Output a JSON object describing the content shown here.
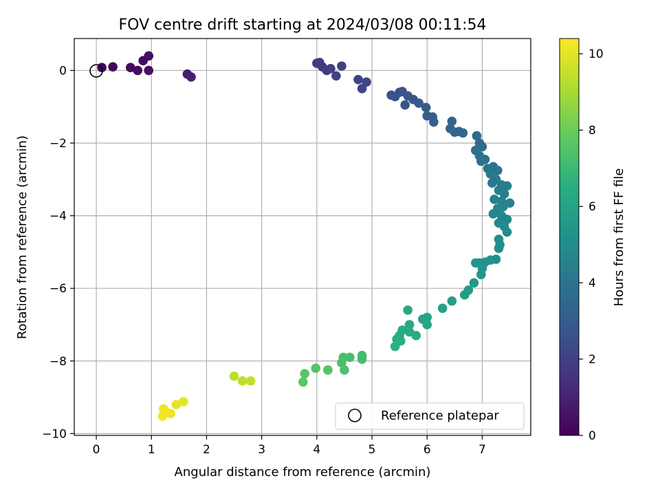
{
  "chart_data": {
    "type": "scatter",
    "title": "FOV centre drift starting at 2024/03/08 00:11:54",
    "xlabel": "Angular distance from reference (arcmin)",
    "ylabel": "Rotation from reference (arcmin)",
    "xlim": [
      -0.4,
      7.88
    ],
    "ylim": [
      -10.05,
      0.88
    ],
    "x_ticks": [
      0,
      1,
      2,
      3,
      4,
      5,
      6,
      7
    ],
    "y_ticks": [
      0,
      -2,
      -4,
      -6,
      -8,
      -10
    ],
    "x_tick_labels": [
      "0",
      "1",
      "2",
      "3",
      "4",
      "5",
      "6",
      "7"
    ],
    "y_tick_labels": [
      "0",
      "−2",
      "−4",
      "−6",
      "−8",
      "−10"
    ],
    "grid": true,
    "colormap": "viridis",
    "colorbar": {
      "label": "Hours from first FF file",
      "range": [
        0,
        10.4
      ],
      "ticks": [
        0,
        2,
        4,
        6,
        8,
        10
      ],
      "tick_labels": [
        "0",
        "2",
        "4",
        "6",
        "8",
        "10"
      ]
    },
    "legend": {
      "placement": "lower-right",
      "entries": [
        "Reference platepar"
      ]
    },
    "reference_point": {
      "x": 0,
      "y": 0
    },
    "points": [
      {
        "x": 0.1,
        "y": 0.08,
        "h": 0.1
      },
      {
        "x": 0.3,
        "y": 0.1,
        "h": 0.2
      },
      {
        "x": 0.62,
        "y": 0.08,
        "h": 0.3
      },
      {
        "x": 0.75,
        "y": 0.0,
        "h": 0.35
      },
      {
        "x": 0.85,
        "y": 0.27,
        "h": 0.4
      },
      {
        "x": 0.95,
        "y": 0.4,
        "h": 0.45
      },
      {
        "x": 0.95,
        "y": 0.0,
        "h": 0.5
      },
      {
        "x": 1.65,
        "y": -0.1,
        "h": 0.9
      },
      {
        "x": 1.72,
        "y": -0.18,
        "h": 0.95
      },
      {
        "x": 4.0,
        "y": 0.2,
        "h": 1.7
      },
      {
        "x": 4.05,
        "y": 0.22,
        "h": 1.75
      },
      {
        "x": 4.1,
        "y": 0.1,
        "h": 1.8
      },
      {
        "x": 4.18,
        "y": 0.0,
        "h": 1.85
      },
      {
        "x": 4.25,
        "y": 0.05,
        "h": 1.9
      },
      {
        "x": 4.35,
        "y": -0.15,
        "h": 1.95
      },
      {
        "x": 4.45,
        "y": 0.12,
        "h": 2.0
      },
      {
        "x": 4.75,
        "y": -0.25,
        "h": 2.1
      },
      {
        "x": 4.82,
        "y": -0.5,
        "h": 2.15
      },
      {
        "x": 4.9,
        "y": -0.32,
        "h": 2.2
      },
      {
        "x": 5.35,
        "y": -0.68,
        "h": 2.5
      },
      {
        "x": 5.42,
        "y": -0.72,
        "h": 2.55
      },
      {
        "x": 5.5,
        "y": -0.6,
        "h": 2.6
      },
      {
        "x": 5.55,
        "y": -0.58,
        "h": 2.65
      },
      {
        "x": 5.6,
        "y": -0.95,
        "h": 2.7
      },
      {
        "x": 5.65,
        "y": -0.7,
        "h": 2.75
      },
      {
        "x": 5.75,
        "y": -0.8,
        "h": 2.8
      },
      {
        "x": 5.85,
        "y": -0.9,
        "h": 2.9
      },
      {
        "x": 5.98,
        "y": -1.02,
        "h": 3.0
      },
      {
        "x": 6.0,
        "y": -1.25,
        "h": 3.05
      },
      {
        "x": 6.1,
        "y": -1.28,
        "h": 3.1
      },
      {
        "x": 6.12,
        "y": -1.42,
        "h": 3.15
      },
      {
        "x": 6.45,
        "y": -1.4,
        "h": 3.3
      },
      {
        "x": 6.42,
        "y": -1.6,
        "h": 3.35
      },
      {
        "x": 6.5,
        "y": -1.7,
        "h": 3.4
      },
      {
        "x": 6.58,
        "y": -1.68,
        "h": 3.45
      },
      {
        "x": 6.65,
        "y": -1.72,
        "h": 3.5
      },
      {
        "x": 6.9,
        "y": -1.8,
        "h": 3.6
      },
      {
        "x": 6.95,
        "y": -2.0,
        "h": 3.65
      },
      {
        "x": 7.0,
        "y": -2.1,
        "h": 3.7
      },
      {
        "x": 6.88,
        "y": -2.2,
        "h": 3.75
      },
      {
        "x": 6.95,
        "y": -2.35,
        "h": 3.8
      },
      {
        "x": 7.05,
        "y": -2.45,
        "h": 3.85
      },
      {
        "x": 6.98,
        "y": -2.5,
        "h": 3.9
      },
      {
        "x": 7.1,
        "y": -2.7,
        "h": 3.95
      },
      {
        "x": 7.2,
        "y": -2.65,
        "h": 4.0
      },
      {
        "x": 7.28,
        "y": -2.75,
        "h": 4.05
      },
      {
        "x": 7.15,
        "y": -2.85,
        "h": 4.1
      },
      {
        "x": 7.25,
        "y": -3.0,
        "h": 4.15
      },
      {
        "x": 7.18,
        "y": -3.1,
        "h": 4.2
      },
      {
        "x": 7.35,
        "y": -3.15,
        "h": 4.25
      },
      {
        "x": 7.45,
        "y": -3.18,
        "h": 4.3
      },
      {
        "x": 7.3,
        "y": -3.3,
        "h": 4.35
      },
      {
        "x": 7.4,
        "y": -3.4,
        "h": 4.4
      },
      {
        "x": 7.22,
        "y": -3.55,
        "h": 4.45
      },
      {
        "x": 7.35,
        "y": -3.6,
        "h": 4.5
      },
      {
        "x": 7.5,
        "y": -3.65,
        "h": 4.55
      },
      {
        "x": 7.38,
        "y": -3.75,
        "h": 4.6
      },
      {
        "x": 7.28,
        "y": -3.8,
        "h": 4.65
      },
      {
        "x": 7.2,
        "y": -3.95,
        "h": 4.7
      },
      {
        "x": 7.35,
        "y": -4.0,
        "h": 4.75
      },
      {
        "x": 7.45,
        "y": -4.1,
        "h": 4.8
      },
      {
        "x": 7.3,
        "y": -4.2,
        "h": 4.85
      },
      {
        "x": 7.4,
        "y": -4.3,
        "h": 4.9
      },
      {
        "x": 7.45,
        "y": -4.45,
        "h": 4.95
      },
      {
        "x": 7.3,
        "y": -4.65,
        "h": 5.0
      },
      {
        "x": 7.32,
        "y": -4.8,
        "h": 5.05
      },
      {
        "x": 7.3,
        "y": -4.9,
        "h": 5.1
      },
      {
        "x": 7.25,
        "y": -5.2,
        "h": 5.2
      },
      {
        "x": 7.15,
        "y": -5.22,
        "h": 5.25
      },
      {
        "x": 7.05,
        "y": -5.28,
        "h": 5.3
      },
      {
        "x": 6.95,
        "y": -5.3,
        "h": 5.35
      },
      {
        "x": 6.88,
        "y": -5.3,
        "h": 5.4
      },
      {
        "x": 7.0,
        "y": -5.45,
        "h": 5.45
      },
      {
        "x": 6.98,
        "y": -5.62,
        "h": 5.5
      },
      {
        "x": 6.85,
        "y": -5.85,
        "h": 5.6
      },
      {
        "x": 6.75,
        "y": -6.05,
        "h": 5.7
      },
      {
        "x": 6.68,
        "y": -6.18,
        "h": 5.75
      },
      {
        "x": 6.45,
        "y": -6.35,
        "h": 5.85
      },
      {
        "x": 6.28,
        "y": -6.55,
        "h": 5.95
      },
      {
        "x": 6.0,
        "y": -6.8,
        "h": 6.05
      },
      {
        "x": 5.92,
        "y": -6.85,
        "h": 6.1
      },
      {
        "x": 6.0,
        "y": -7.0,
        "h": 6.15
      },
      {
        "x": 5.65,
        "y": -6.6,
        "h": 6.2
      },
      {
        "x": 5.68,
        "y": -7.0,
        "h": 6.25
      },
      {
        "x": 5.55,
        "y": -7.15,
        "h": 6.3
      },
      {
        "x": 5.68,
        "y": -7.2,
        "h": 6.35
      },
      {
        "x": 5.8,
        "y": -7.3,
        "h": 6.4
      },
      {
        "x": 5.5,
        "y": -7.3,
        "h": 6.45
      },
      {
        "x": 5.45,
        "y": -7.4,
        "h": 6.5
      },
      {
        "x": 5.52,
        "y": -7.45,
        "h": 6.55
      },
      {
        "x": 5.42,
        "y": -7.6,
        "h": 6.6
      },
      {
        "x": 4.82,
        "y": -7.85,
        "h": 7.1
      },
      {
        "x": 4.82,
        "y": -7.95,
        "h": 7.15
      },
      {
        "x": 4.6,
        "y": -7.9,
        "h": 7.25
      },
      {
        "x": 4.48,
        "y": -7.9,
        "h": 7.3
      },
      {
        "x": 4.45,
        "y": -8.05,
        "h": 7.35
      },
      {
        "x": 4.5,
        "y": -8.25,
        "h": 7.4
      },
      {
        "x": 4.2,
        "y": -8.25,
        "h": 7.5
      },
      {
        "x": 3.98,
        "y": -8.2,
        "h": 7.6
      },
      {
        "x": 3.78,
        "y": -8.35,
        "h": 7.65
      },
      {
        "x": 3.75,
        "y": -8.58,
        "h": 7.7
      },
      {
        "x": 2.5,
        "y": -8.42,
        "h": 9.3
      },
      {
        "x": 2.65,
        "y": -8.55,
        "h": 9.4
      },
      {
        "x": 2.8,
        "y": -8.55,
        "h": 9.45
      },
      {
        "x": 1.58,
        "y": -9.12,
        "h": 10.0
      },
      {
        "x": 1.45,
        "y": -9.2,
        "h": 10.05
      },
      {
        "x": 1.35,
        "y": -9.45,
        "h": 10.1
      },
      {
        "x": 1.22,
        "y": -9.32,
        "h": 10.15
      },
      {
        "x": 1.28,
        "y": -9.42,
        "h": 10.2
      },
      {
        "x": 1.2,
        "y": -9.52,
        "h": 10.25
      }
    ]
  }
}
